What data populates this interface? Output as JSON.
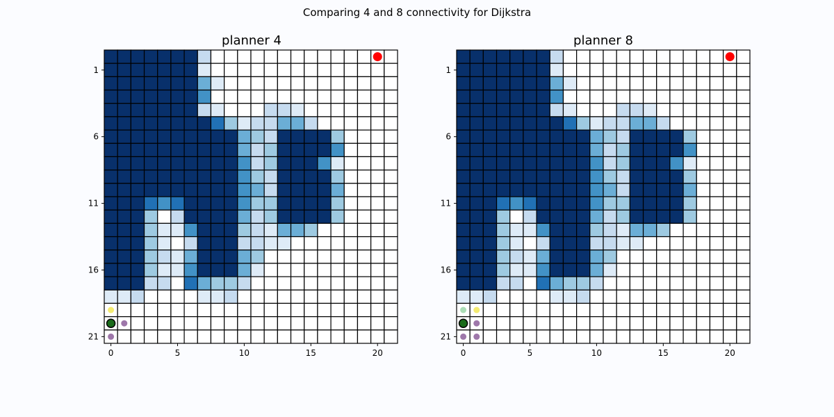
{
  "figure": {
    "suptitle": "Comparing 4 and 8 connectivity for Dijkstra"
  },
  "colors": {
    "background": "#fbfcff",
    "grid_line": "#000000",
    "goal": "#ff0000",
    "start_marker": "#1a6b1a",
    "colormap": [
      "#ffffff",
      "#deebf7",
      "#c6dbef",
      "#9ecae1",
      "#6baed6",
      "#4292c6",
      "#2171b5",
      "#08306b"
    ]
  },
  "chart_data": [
    {
      "type": "heatmap",
      "title": "planner 4",
      "xlim": [
        -0.5,
        21.5
      ],
      "ylim": [
        21.5,
        -0.5
      ],
      "xticks": [
        0,
        5,
        10,
        15,
        20
      ],
      "yticks": [
        1,
        6,
        11,
        16,
        21
      ],
      "grid": true,
      "legend": "none",
      "rows": [
        "7777777200000000000000",
        "7777777100000000000000",
        "7777777410000000000000",
        "7777777500000000000000",
        "7777777210002210000000",
        "7777777763122442000000",
        "7777777777432777730000",
        "7777777777423777750000",
        "7777777777523777510000",
        "7777777777532777730000",
        "7777777777542777740000",
        "7776567777533777730000",
        "7773027777423777730000",
        "7773115777321443000000",
        "7773102777221100000000",
        "7773214777430000000000",
        "7773115777410000000000",
        "7772206433200000000000",
        "1120000112000000000000",
        "0000000000000000000000",
        "0000000000000000000000",
        "0000000000000000000000"
      ],
      "goal": {
        "x": 20,
        "y": 0
      },
      "markers": [
        {
          "x": 0,
          "y": 19,
          "color": "#f0e442",
          "kind": "explored"
        },
        {
          "x": 0,
          "y": 20,
          "color": "#1a6b1a",
          "kind": "start"
        },
        {
          "x": 1,
          "y": 20,
          "color": "#7e4a8e",
          "kind": "explored"
        },
        {
          "x": 0,
          "y": 21,
          "color": "#7e4a8e",
          "kind": "explored"
        }
      ]
    },
    {
      "type": "heatmap",
      "title": "planner 8",
      "xlim": [
        -0.5,
        21.5
      ],
      "ylim": [
        21.5,
        -0.5
      ],
      "xticks": [
        0,
        5,
        10,
        15,
        20
      ],
      "yticks": [
        1,
        6,
        11,
        16,
        21
      ],
      "grid": true,
      "legend": "none",
      "rows": [
        "7777777200000000000000",
        "7777777100000000000000",
        "7777777410000000000000",
        "7777777500000000000000",
        "7777777210002210000000",
        "7777777763122442000000",
        "7777777777432777730000",
        "7777777777423777750000",
        "7777777777523777510000",
        "7777777777532777730000",
        "7777777777542777740000",
        "7776567777533777730000",
        "7773027777423777730000",
        "7773115777321443000000",
        "7773102777221100000000",
        "7773214777430000000000",
        "7773115777410000000000",
        "7772206433200000000000",
        "1120000112000000000000",
        "0000000000000000000000",
        "0000000000000000000000",
        "0000000000000000000000"
      ],
      "goal": {
        "x": 20,
        "y": 0
      },
      "markers": [
        {
          "x": 0,
          "y": 19,
          "color": "#8fd19e",
          "kind": "explored"
        },
        {
          "x": 1,
          "y": 19,
          "color": "#f0e442",
          "kind": "explored"
        },
        {
          "x": 0,
          "y": 20,
          "color": "#1a6b1a",
          "kind": "start"
        },
        {
          "x": 1,
          "y": 20,
          "color": "#7e4a8e",
          "kind": "explored"
        },
        {
          "x": 0,
          "y": 21,
          "color": "#7e4a8e",
          "kind": "explored"
        },
        {
          "x": 1,
          "y": 21,
          "color": "#7e4a8e",
          "kind": "explored"
        }
      ]
    }
  ]
}
